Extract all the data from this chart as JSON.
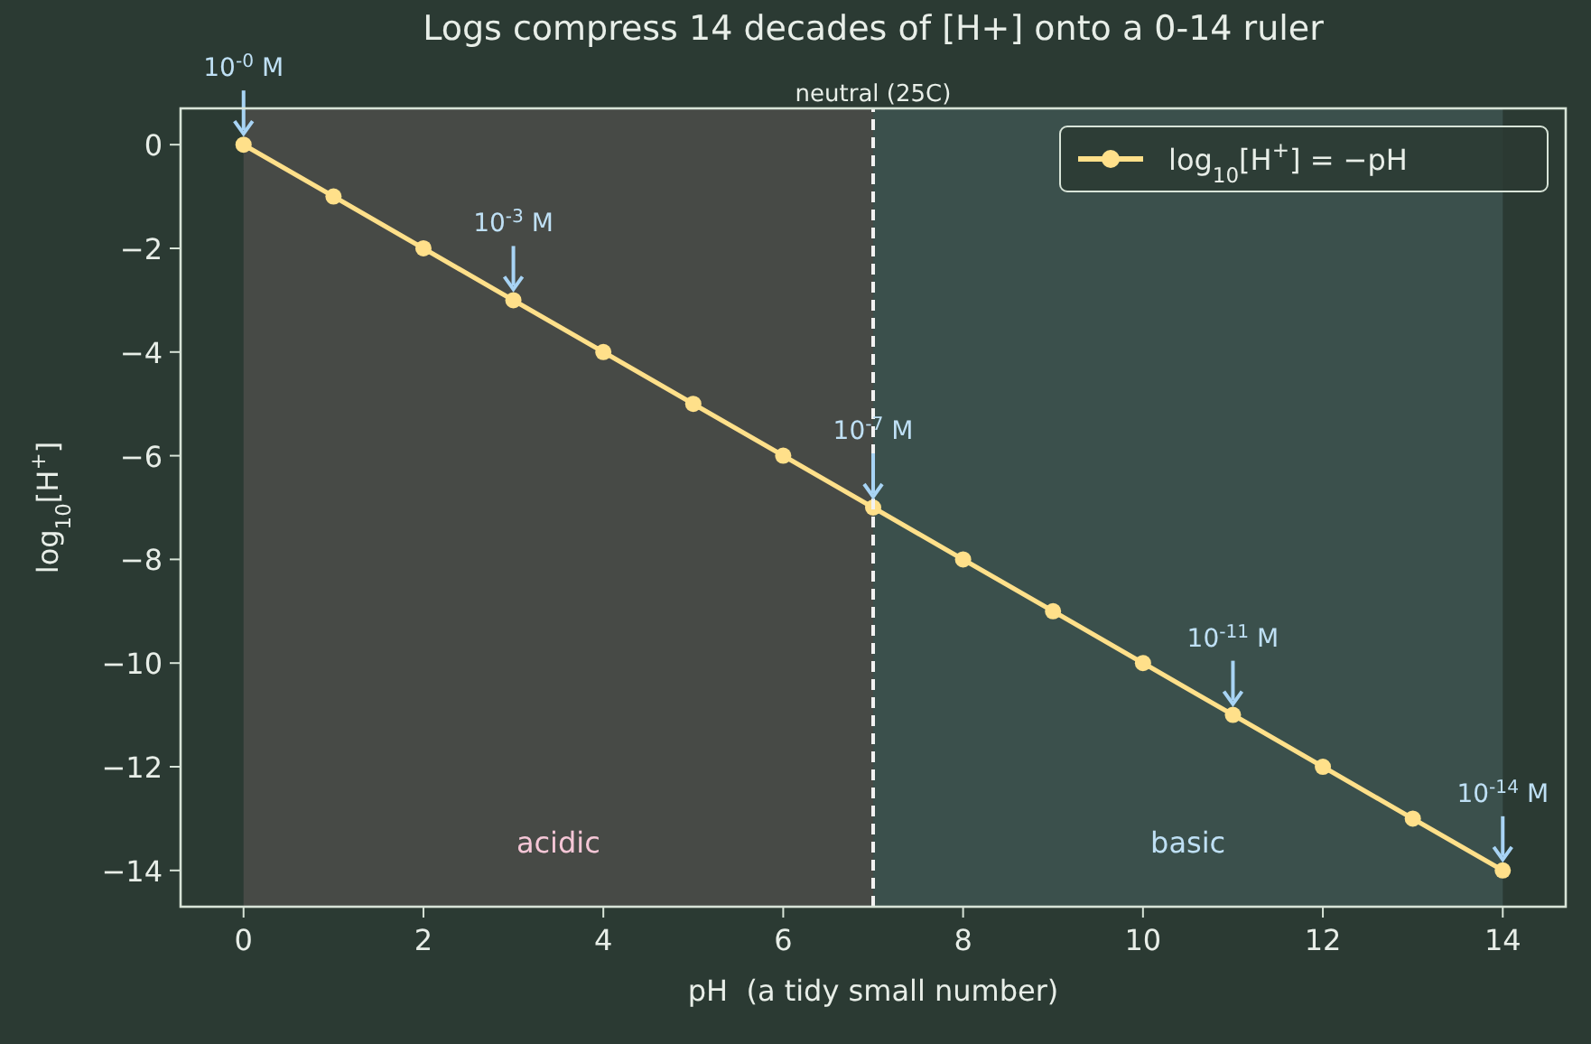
{
  "chart_data": {
    "type": "line",
    "title": "Logs compress 14 decades of [H+] onto a 0-14 ruler",
    "xlabel": "pH  (a tidy small number)",
    "ylabel": "log$_{10}$[H$^{+}$]",
    "x": [
      0,
      1,
      2,
      3,
      4,
      5,
      6,
      7,
      8,
      9,
      10,
      11,
      12,
      13,
      14
    ],
    "series": [
      {
        "name": "log$_{10}$[H$^{+}$] = −pH",
        "color": "#ffe08a",
        "values": [
          0,
          -1,
          -2,
          -3,
          -4,
          -5,
          -6,
          -7,
          -8,
          -9,
          -10,
          -11,
          -12,
          -13,
          -14
        ]
      }
    ],
    "xlim": [
      -0.7,
      14.7
    ],
    "ylim": [
      -14.7,
      0.7
    ],
    "xticks": [
      0,
      2,
      4,
      6,
      8,
      10,
      12,
      14
    ],
    "yticks": [
      -14,
      -12,
      -10,
      -8,
      -6,
      -4,
      -2,
      0
    ],
    "marker": "circle",
    "line_style": "solid",
    "grid": false,
    "legend": "top right",
    "ref_lines": [
      {
        "axis": "x",
        "value": 7,
        "label": "neutral (25C)",
        "color": "#f2f2f2",
        "line_style": "dashed"
      }
    ],
    "bands": [
      {
        "axis": "x",
        "from": 0,
        "to": 7,
        "label": "acidic",
        "color": "#474a46"
      },
      {
        "axis": "x",
        "from": 7,
        "to": 14,
        "label": "basic",
        "color": "#3b504c"
      }
    ],
    "annotations": [
      {
        "text": "10$^{-0}$ M",
        "x": 0,
        "y": 0
      },
      {
        "text": "10$^{-3}$ M",
        "x": 3,
        "y": -3
      },
      {
        "text": "10$^{-7}$ M",
        "x": 7,
        "y": -7
      },
      {
        "text": "10$^{-11}$ M",
        "x": 11,
        "y": -11
      },
      {
        "text": "10$^{-14}$ M",
        "x": 14,
        "y": -14
      }
    ]
  }
}
